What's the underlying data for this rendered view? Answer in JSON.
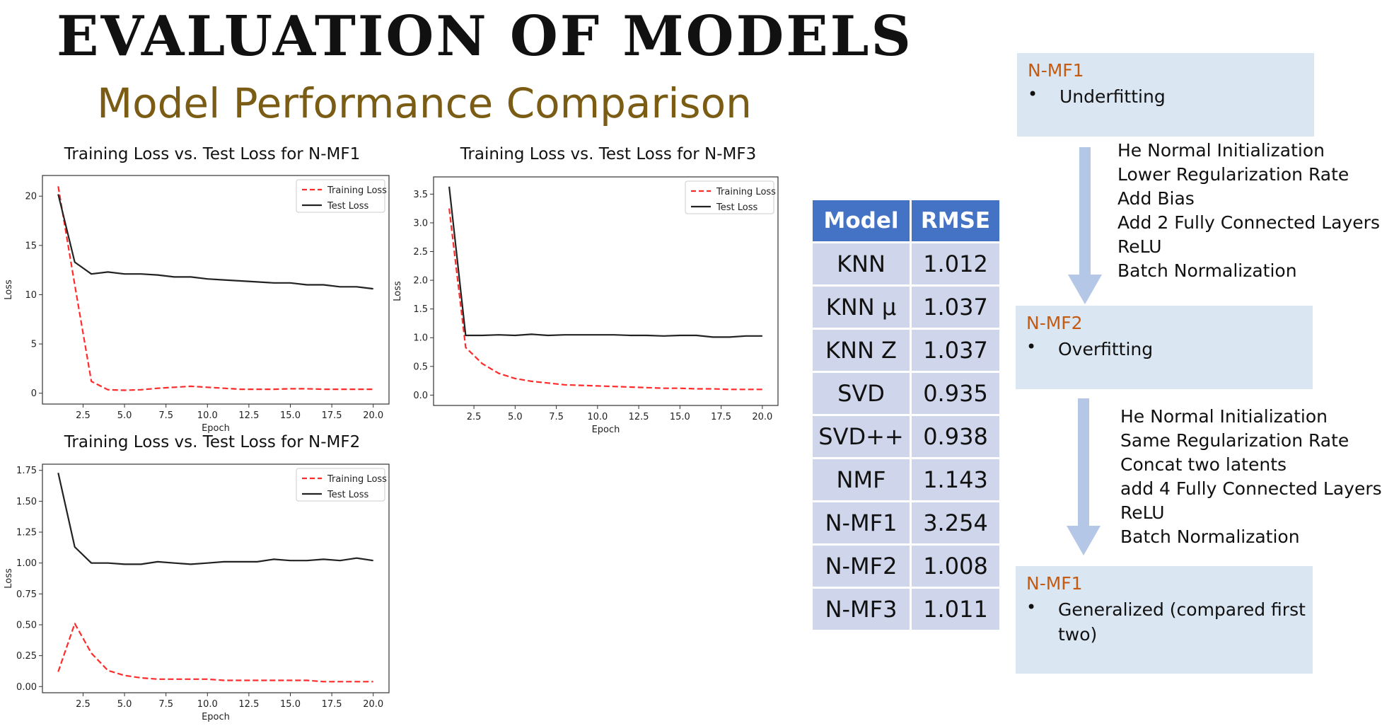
{
  "title": "EVALUATION OF MODELS",
  "subtitle": "Model Performance Comparison",
  "chart_data": [
    {
      "type": "line",
      "title": "Training Loss vs. Test Loss for N-MF1",
      "xlabel": "Epoch",
      "ylabel": "Loss",
      "xlim": [
        0.05,
        20.95
      ],
      "ylim": [
        -1.1,
        22.1
      ],
      "xticks": [
        2.5,
        5.0,
        7.5,
        10.0,
        12.5,
        15.0,
        17.5,
        20.0
      ],
      "xtick_labels": [
        "2.5",
        "5.0",
        "7.5",
        "10.0",
        "12.5",
        "15.0",
        "17.5",
        "20.0"
      ],
      "yticks": [
        0,
        5,
        10,
        15,
        20
      ],
      "ytick_labels": [
        "0",
        "5",
        "10",
        "15",
        "20"
      ],
      "legend_position": "top-right",
      "x": [
        1,
        2,
        3,
        4,
        5,
        6,
        7,
        8,
        9,
        10,
        11,
        12,
        13,
        14,
        15,
        16,
        17,
        18,
        19,
        20
      ],
      "series": [
        {
          "name": "Training Loss",
          "style": "dashed",
          "color": "#ff2a2a",
          "values": [
            21.0,
            11.0,
            1.2,
            0.35,
            0.3,
            0.35,
            0.5,
            0.6,
            0.7,
            0.6,
            0.5,
            0.4,
            0.4,
            0.4,
            0.45,
            0.45,
            0.4,
            0.4,
            0.4,
            0.4
          ]
        },
        {
          "name": "Test Loss",
          "style": "solid",
          "color": "#222222",
          "values": [
            20.2,
            13.3,
            12.1,
            12.3,
            12.1,
            12.1,
            12.0,
            11.8,
            11.8,
            11.6,
            11.5,
            11.4,
            11.3,
            11.2,
            11.2,
            11.0,
            11.0,
            10.8,
            10.8,
            10.6
          ]
        }
      ]
    },
    {
      "type": "line",
      "title": "Training Loss vs. Test Loss for N-MF3",
      "xlabel": "Epoch",
      "ylabel": "Loss",
      "xlim": [
        0.05,
        20.95
      ],
      "ylim": [
        -0.18,
        3.8
      ],
      "xticks": [
        2.5,
        5.0,
        7.5,
        10.0,
        12.5,
        15.0,
        17.5,
        20.0
      ],
      "xtick_labels": [
        "2.5",
        "5.0",
        "7.5",
        "10.0",
        "12.5",
        "15.0",
        "17.5",
        "20.0"
      ],
      "yticks": [
        0.0,
        0.5,
        1.0,
        1.5,
        2.0,
        2.5,
        3.0,
        3.5
      ],
      "ytick_labels": [
        "0.0",
        "0.5",
        "1.0",
        "1.5",
        "2.0",
        "2.5",
        "3.0",
        "3.5"
      ],
      "legend_position": "top-right",
      "x": [
        1,
        2,
        3,
        4,
        5,
        6,
        7,
        8,
        9,
        10,
        11,
        12,
        13,
        14,
        15,
        16,
        17,
        18,
        19,
        20
      ],
      "series": [
        {
          "name": "Training Loss",
          "style": "dashed",
          "color": "#ff2a2a",
          "values": [
            3.25,
            0.83,
            0.55,
            0.38,
            0.29,
            0.24,
            0.21,
            0.18,
            0.17,
            0.16,
            0.15,
            0.14,
            0.13,
            0.12,
            0.12,
            0.11,
            0.11,
            0.1,
            0.1,
            0.1
          ]
        },
        {
          "name": "Test Loss",
          "style": "solid",
          "color": "#222222",
          "values": [
            3.63,
            1.04,
            1.04,
            1.05,
            1.04,
            1.06,
            1.04,
            1.05,
            1.05,
            1.05,
            1.05,
            1.04,
            1.04,
            1.03,
            1.04,
            1.04,
            1.01,
            1.01,
            1.03,
            1.03
          ]
        }
      ]
    },
    {
      "type": "line",
      "title": "Training Loss vs. Test Loss for N-MF2",
      "xlabel": "Epoch",
      "ylabel": "Loss",
      "xlim": [
        0.05,
        20.95
      ],
      "ylim": [
        -0.05,
        1.8
      ],
      "xticks": [
        2.5,
        5.0,
        7.5,
        10.0,
        12.5,
        15.0,
        17.5,
        20.0
      ],
      "xtick_labels": [
        "2.5",
        "5.0",
        "7.5",
        "10.0",
        "12.5",
        "15.0",
        "17.5",
        "20.0"
      ],
      "yticks": [
        0.0,
        0.25,
        0.5,
        0.75,
        1.0,
        1.25,
        1.5,
        1.75
      ],
      "ytick_labels": [
        "0.00",
        "0.25",
        "0.50",
        "0.75",
        "1.00",
        "1.25",
        "1.50",
        "1.75"
      ],
      "legend_position": "top-right",
      "x": [
        1,
        2,
        3,
        4,
        5,
        6,
        7,
        8,
        9,
        10,
        11,
        12,
        13,
        14,
        15,
        16,
        17,
        18,
        19,
        20
      ],
      "series": [
        {
          "name": "Training Loss",
          "style": "dashed",
          "color": "#ff2a2a",
          "values": [
            0.12,
            0.51,
            0.27,
            0.13,
            0.09,
            0.07,
            0.06,
            0.06,
            0.06,
            0.06,
            0.05,
            0.05,
            0.05,
            0.05,
            0.05,
            0.05,
            0.04,
            0.04,
            0.04,
            0.04
          ]
        },
        {
          "name": "Test Loss",
          "style": "solid",
          "color": "#222222",
          "values": [
            1.73,
            1.13,
            1.0,
            1.0,
            0.99,
            0.99,
            1.01,
            1.0,
            0.99,
            1.0,
            1.01,
            1.01,
            1.01,
            1.03,
            1.02,
            1.02,
            1.03,
            1.02,
            1.04,
            1.02
          ]
        }
      ]
    },
    {
      "type": "table",
      "columns": [
        "Model",
        "RMSE"
      ],
      "header_color": "#4472c4",
      "cell_color": "#cfd5ea",
      "rows": [
        [
          "KNN",
          "1.012"
        ],
        [
          "KNN μ",
          "1.037"
        ],
        [
          "KNN Z",
          "1.037"
        ],
        [
          "SVD",
          "0.935"
        ],
        [
          "SVD++",
          "0.938"
        ],
        [
          "NMF",
          "1.143"
        ],
        [
          "N-MF1",
          "3.254"
        ],
        [
          "N-MF2",
          "1.008"
        ],
        [
          "N-MF3",
          "1.011"
        ]
      ]
    }
  ],
  "flow": {
    "box1": {
      "title": "N-MF1",
      "bullet": "•",
      "text": "Underfitting"
    },
    "steps1": [
      "He Normal Initialization",
      "Lower Regularization Rate",
      "Add Bias",
      "Add 2 Fully Connected Layers",
      "ReLU",
      "Batch Normalization"
    ],
    "box2": {
      "title": "N-MF2",
      "bullet": "•",
      "text": "Overfitting"
    },
    "steps2": [
      "He Normal Initialization",
      "Same Regularization Rate",
      "Concat two latents",
      "add 4 Fully Connected Layers",
      "ReLU",
      "Batch Normalization"
    ],
    "box3": {
      "title": "N-MF1",
      "bullet": "•",
      "text_line1": "Generalized (compared first",
      "text_line2": "two)"
    },
    "title_color": "#c55a11",
    "box_color": "#dbe6f3",
    "arrow_color": "#b4c7e7"
  }
}
